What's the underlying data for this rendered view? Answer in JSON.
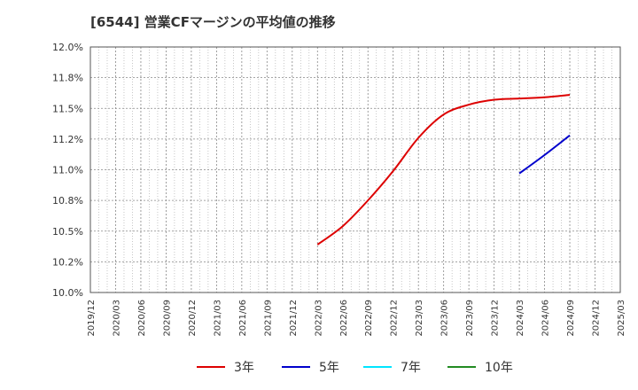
{
  "chart_data": {
    "type": "line",
    "title": "[6544]  営業CFマージンの平均値の推移",
    "x_ticks": [
      "2019/12",
      "2020/03",
      "2020/06",
      "2020/09",
      "2020/12",
      "2021/03",
      "2021/06",
      "2021/09",
      "2021/12",
      "2022/03",
      "2022/06",
      "2022/09",
      "2022/12",
      "2023/03",
      "2023/06",
      "2023/09",
      "2023/12",
      "2024/03",
      "2024/06",
      "2024/09",
      "2024/12",
      "2025/03"
    ],
    "y_ticks": [
      "12.0%",
      "11.8%",
      "11.5%",
      "11.2%",
      "11.0%",
      "10.8%",
      "10.5%",
      "10.2%",
      "10.0%"
    ],
    "ylim": [
      10.0,
      12.0
    ],
    "grid": true,
    "legend_position": "bottom",
    "series": [
      {
        "name": "3年",
        "color": "#dd0000",
        "x": [
          "2022/03",
          "2022/06",
          "2022/09",
          "2022/12",
          "2023/03",
          "2023/06",
          "2023/09",
          "2023/12",
          "2024/03",
          "2024/06",
          "2024/09"
        ],
        "values": [
          10.39,
          10.54,
          10.75,
          10.99,
          11.26,
          11.45,
          11.53,
          11.57,
          11.58,
          11.59,
          11.61
        ]
      },
      {
        "name": "5年",
        "color": "#0000cc",
        "x": [
          "2024/03",
          "2024/06",
          "2024/09"
        ],
        "values": [
          10.97,
          11.12,
          11.28
        ]
      },
      {
        "name": "7年",
        "color": "#00e5ff",
        "x": [],
        "values": []
      },
      {
        "name": "10年",
        "color": "#228b22",
        "x": [],
        "values": []
      }
    ]
  }
}
